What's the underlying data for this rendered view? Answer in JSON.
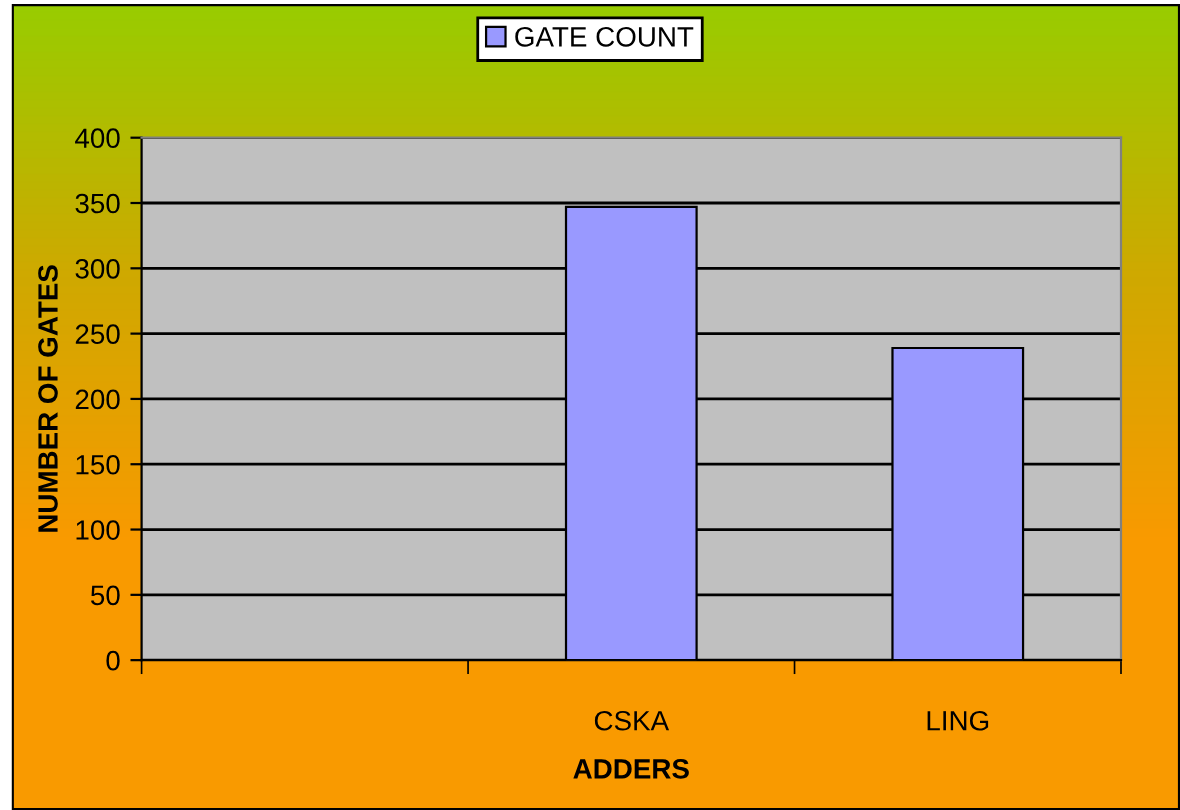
{
  "chart_data": {
    "type": "bar",
    "xlabel": "ADDERS",
    "ylabel": "NUMBER OF GATES",
    "categories": [
      null,
      "CSKA",
      "LING"
    ],
    "series": [
      {
        "name": "GATE COUNT",
        "color": "#9999ff",
        "values": [
          null,
          347,
          239
        ]
      }
    ],
    "ylim": [
      0,
      400
    ],
    "yticks": [
      0,
      50,
      100,
      150,
      200,
      250,
      300,
      350,
      400
    ],
    "grid": "y",
    "legend": "top"
  }
}
